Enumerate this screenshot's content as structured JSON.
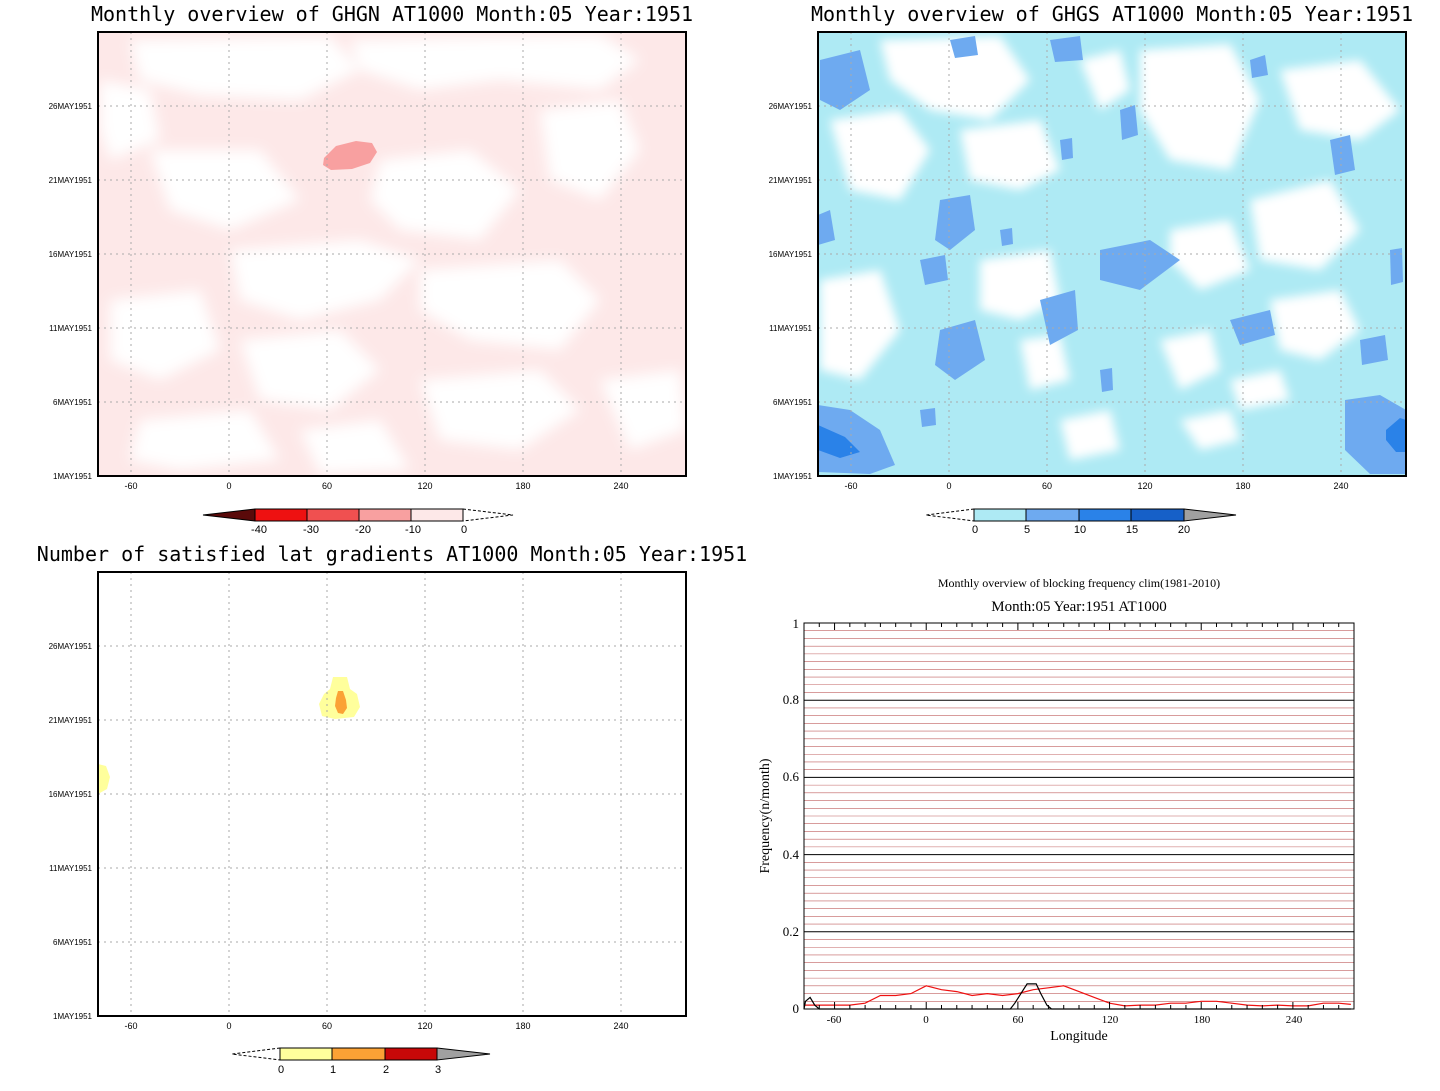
{
  "panel_titles": {
    "ghgn": "Monthly overview of GHGN AT1000 Month:05 Year:1951",
    "ghgs": "Monthly overview of GHGS AT1000 Month:05 Year:1951",
    "lat": "Number of satisfied lat gradients AT1000 Month:05 Year:1951",
    "freq_line1": "Monthly overview of blocking frequency clim(1981-2010)",
    "freq_line2": "Month:05 Year:1951  AT1000"
  },
  "colors": {
    "ghgn_levels": [
      "#5a0a0a",
      "#ee1111",
      "#f05050",
      "#f8a0a0",
      "#fde8e8"
    ],
    "ghgs_levels": [
      "#aeeaf4",
      "#6eaaf0",
      "#2a82e8",
      "#1660c8",
      "#a0a0a0"
    ],
    "lat_levels": [
      "#ffff9c",
      "#fba235",
      "#c80808",
      "#a0a0a0"
    ],
    "freq_grid_major": "#000000",
    "freq_grid_minor": "#c06060",
    "freq_clim_line": "#ee1111",
    "freq_obs_line": "#000000"
  },
  "chart_data": [
    {
      "type": "heatmap",
      "title": "Monthly overview of GHGN AT1000 Month:05 Year:1951",
      "x_ticks": [
        "-60",
        "0",
        "60",
        "120",
        "180",
        "240"
      ],
      "y_ticks": [
        "1MAY1951",
        "6MAY1951",
        "11MAY1951",
        "16MAY1951",
        "21MAY1951",
        "26MAY1951"
      ],
      "xlim": [
        -80,
        280
      ],
      "colorbar": {
        "labels": [
          "-40",
          "-30",
          "-20",
          "-10",
          "0"
        ]
      },
      "notes": "mostly light pink (-10..0) with white gaps; one -20..-10 patch near 62-90E, 22 May"
    },
    {
      "type": "heatmap",
      "title": "Monthly overview of GHGS AT1000 Month:05 Year:1951",
      "x_ticks": [
        "-60",
        "0",
        "60",
        "120",
        "180",
        "240"
      ],
      "y_ticks": [
        "1MAY1951",
        "6MAY1951",
        "11MAY1951",
        "16MAY1951",
        "21MAY1951",
        "26MAY1951"
      ],
      "xlim": [
        -80,
        280
      ],
      "colorbar": {
        "labels": [
          "0",
          "5",
          "10",
          "15",
          "20"
        ]
      },
      "notes": "mostly light blue (0..5) with white gaps and scattered 5..10 patches; small 10..15 spots near -70E 3 May and 270E 4 May"
    },
    {
      "type": "heatmap",
      "title": "Number of satisfied lat gradients AT1000 Month:05 Year:1951",
      "x_ticks": [
        "-60",
        "0",
        "60",
        "120",
        "180",
        "240"
      ],
      "y_ticks": [
        "1MAY1951",
        "6MAY1951",
        "11MAY1951",
        "16MAY1951",
        "21MAY1951",
        "26MAY1951"
      ],
      "xlim": [
        -80,
        280
      ],
      "colorbar": {
        "labels": [
          "0",
          "1",
          "2",
          "3"
        ]
      },
      "notes": "yellow (0..1) blob near 68E 22 May with orange (1..2) core; small yellow spot at -78E 17 May"
    },
    {
      "type": "line",
      "title": "Monthly overview of blocking frequency clim(1981-2010)",
      "subtitle": "Month:05 Year:1951  AT1000",
      "xlabel": "Longitude",
      "ylabel": "Frequency(n/month)",
      "x_ticks": [
        "-60",
        "0",
        "60",
        "120",
        "180",
        "240"
      ],
      "y_ticks": [
        "0",
        "0.2",
        "0.4",
        "0.6",
        "0.8",
        "1"
      ],
      "xlim": [
        -80,
        280
      ],
      "ylim": [
        0,
        1
      ],
      "grid": true,
      "series": [
        {
          "color": "#ee1111",
          "x": [
            -80,
            -70,
            -60,
            -50,
            -40,
            -30,
            -20,
            -10,
            0,
            10,
            20,
            30,
            40,
            50,
            60,
            70,
            80,
            90,
            100,
            110,
            120,
            130,
            140,
            150,
            160,
            170,
            180,
            190,
            200,
            210,
            220,
            230,
            240,
            250,
            260,
            270,
            278
          ],
          "y": [
            0.01,
            0.01,
            0.01,
            0.01,
            0.015,
            0.035,
            0.035,
            0.04,
            0.06,
            0.05,
            0.045,
            0.035,
            0.04,
            0.035,
            0.04,
            0.05,
            0.055,
            0.06,
            0.045,
            0.03,
            0.015,
            0.008,
            0.01,
            0.01,
            0.015,
            0.015,
            0.02,
            0.02,
            0.015,
            0.01,
            0.008,
            0.01,
            0.008,
            0.008,
            0.015,
            0.015,
            0.012
          ]
        },
        {
          "color": "#000000",
          "x": [
            -80,
            -79,
            -76,
            -73,
            -70,
            55,
            58,
            62,
            66,
            72,
            75,
            79,
            82,
            278
          ],
          "y": [
            0,
            0.02,
            0.03,
            0.01,
            0,
            0,
            0.015,
            0.04,
            0.065,
            0.065,
            0.04,
            0.01,
            0,
            0
          ]
        }
      ]
    }
  ]
}
